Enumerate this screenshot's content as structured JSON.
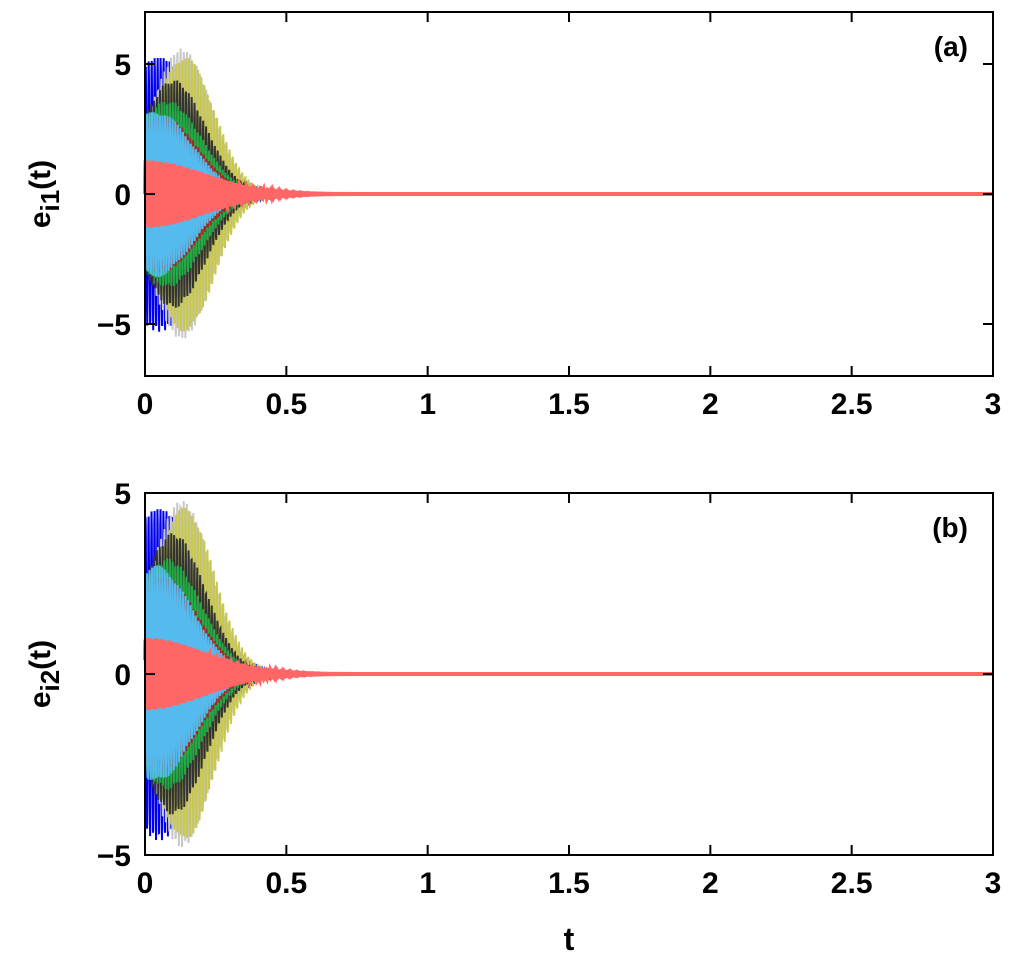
{
  "chart_data": [
    {
      "type": "line",
      "panel_label": "(a)",
      "ylabel_base": "e",
      "ylabel_sub": "i1",
      "ylabel_suffix": "(t)",
      "xlabel": "",
      "xlim": [
        0,
        3
      ],
      "ylim": [
        -7,
        7
      ],
      "x_ticks": [
        "0",
        "0.5",
        "1",
        "1.5",
        "2",
        "2.5",
        "3"
      ],
      "y_ticks": [
        {
          "value": 5,
          "label": "5"
        },
        {
          "value": 0,
          "label": "0"
        },
        {
          "value": -5,
          "label": "−5"
        }
      ],
      "grid": false,
      "legend": "none",
      "series": [
        {
          "color": "#0000ee",
          "amplitude": 5.3,
          "decay": 10,
          "frequency": 95,
          "phase": 0.0,
          "env_center": 0.05,
          "env_width": 0.2
        },
        {
          "color": "#c8c8c8",
          "amplitude": 5.6,
          "decay": 9,
          "frequency": 88,
          "phase": 1.0,
          "env_center": 0.13,
          "env_width": 0.15
        },
        {
          "color": "#c8c850",
          "amplitude": 5.3,
          "decay": 9,
          "frequency": 90,
          "phase": 2.0,
          "env_center": 0.14,
          "env_width": 0.15
        },
        {
          "color": "#333333",
          "amplitude": 4.4,
          "decay": 9,
          "frequency": 98,
          "phase": 0.5,
          "env_center": 0.1,
          "env_width": 0.16
        },
        {
          "color": "#22aa44",
          "amplitude": 3.6,
          "decay": 9,
          "frequency": 102,
          "phase": 1.5,
          "env_center": 0.08,
          "env_width": 0.17
        },
        {
          "color": "#aa2222",
          "amplitude": 3.0,
          "decay": 9,
          "frequency": 105,
          "phase": 2.5,
          "env_center": 0.06,
          "env_width": 0.18
        },
        {
          "color": "#55bbee",
          "amplitude": 3.2,
          "decay": 10,
          "frequency": 110,
          "phase": 3.0,
          "env_center": 0.04,
          "env_width": 0.18
        },
        {
          "color": "#ff6666",
          "amplitude": 1.3,
          "decay": 7,
          "frequency": 120,
          "phase": 0.0,
          "env_center": 0.0,
          "env_width": 0.3
        }
      ]
    },
    {
      "type": "line",
      "panel_label": "(b)",
      "ylabel_base": "e",
      "ylabel_sub": "i2",
      "ylabel_suffix": "(t)",
      "xlabel": "t",
      "xlim": [
        0,
        3
      ],
      "ylim": [
        -5,
        5
      ],
      "x_ticks": [
        "0",
        "0.5",
        "1",
        "1.5",
        "2",
        "2.5",
        "3"
      ],
      "y_ticks": [
        {
          "value": 5,
          "label": "5"
        },
        {
          "value": 0,
          "label": "0"
        },
        {
          "value": -5,
          "label": "−5"
        }
      ],
      "grid": false,
      "legend": "none",
      "series": [
        {
          "color": "#0000ee",
          "amplitude": 4.6,
          "decay": 10,
          "frequency": 95,
          "phase": 0.3,
          "env_center": 0.05,
          "env_width": 0.2
        },
        {
          "color": "#c8c8c8",
          "amplitude": 4.8,
          "decay": 9,
          "frequency": 88,
          "phase": 1.3,
          "env_center": 0.13,
          "env_width": 0.15
        },
        {
          "color": "#c8c850",
          "amplitude": 4.6,
          "decay": 9,
          "frequency": 90,
          "phase": 2.3,
          "env_center": 0.14,
          "env_width": 0.15
        },
        {
          "color": "#333333",
          "amplitude": 3.9,
          "decay": 9,
          "frequency": 98,
          "phase": 0.8,
          "env_center": 0.1,
          "env_width": 0.16
        },
        {
          "color": "#22aa44",
          "amplitude": 3.2,
          "decay": 9,
          "frequency": 102,
          "phase": 1.8,
          "env_center": 0.08,
          "env_width": 0.17
        },
        {
          "color": "#aa2222",
          "amplitude": 2.7,
          "decay": 9,
          "frequency": 105,
          "phase": 2.8,
          "env_center": 0.06,
          "env_width": 0.18
        },
        {
          "color": "#55bbee",
          "amplitude": 3.0,
          "decay": 10,
          "frequency": 110,
          "phase": 3.3,
          "env_center": 0.04,
          "env_width": 0.18
        },
        {
          "color": "#ff6666",
          "amplitude": 1.0,
          "decay": 7,
          "frequency": 120,
          "phase": 0.4,
          "env_center": 0.0,
          "env_width": 0.3
        }
      ]
    }
  ]
}
